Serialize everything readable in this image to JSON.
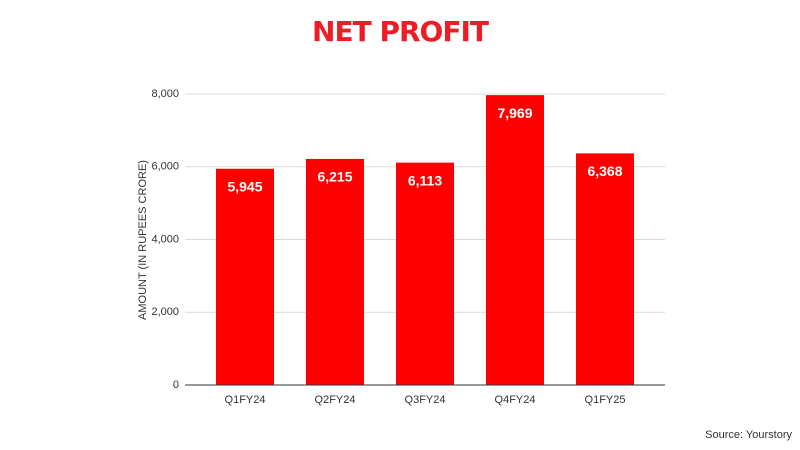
{
  "chart_data": {
    "type": "bar",
    "title": "NET PROFIT",
    "y_label": "AMOUNT (IN RUPEES CRORE)",
    "source": "Source: Yourstory",
    "categories": [
      "Q1FY24",
      "Q2FY24",
      "Q3FY24",
      "Q4FY24",
      "Q1FY25"
    ],
    "values": [
      5945,
      6215,
      6113,
      7969,
      6368
    ],
    "value_labels": [
      "5,945",
      "6,215",
      "6,113",
      "7,969",
      "6,368"
    ],
    "color": "#ff0000",
    "ylim": [
      0,
      8000
    ],
    "yticks": [
      0,
      {
        "value": 2000,
        "label": "2,000"
      },
      {
        "value": 4000,
        "label": "4,000"
      },
      {
        "value": 6000,
        "label": "6,000"
      },
      {
        "value": 8000,
        "label": "8,000"
      }
    ],
    "grid": true
  }
}
